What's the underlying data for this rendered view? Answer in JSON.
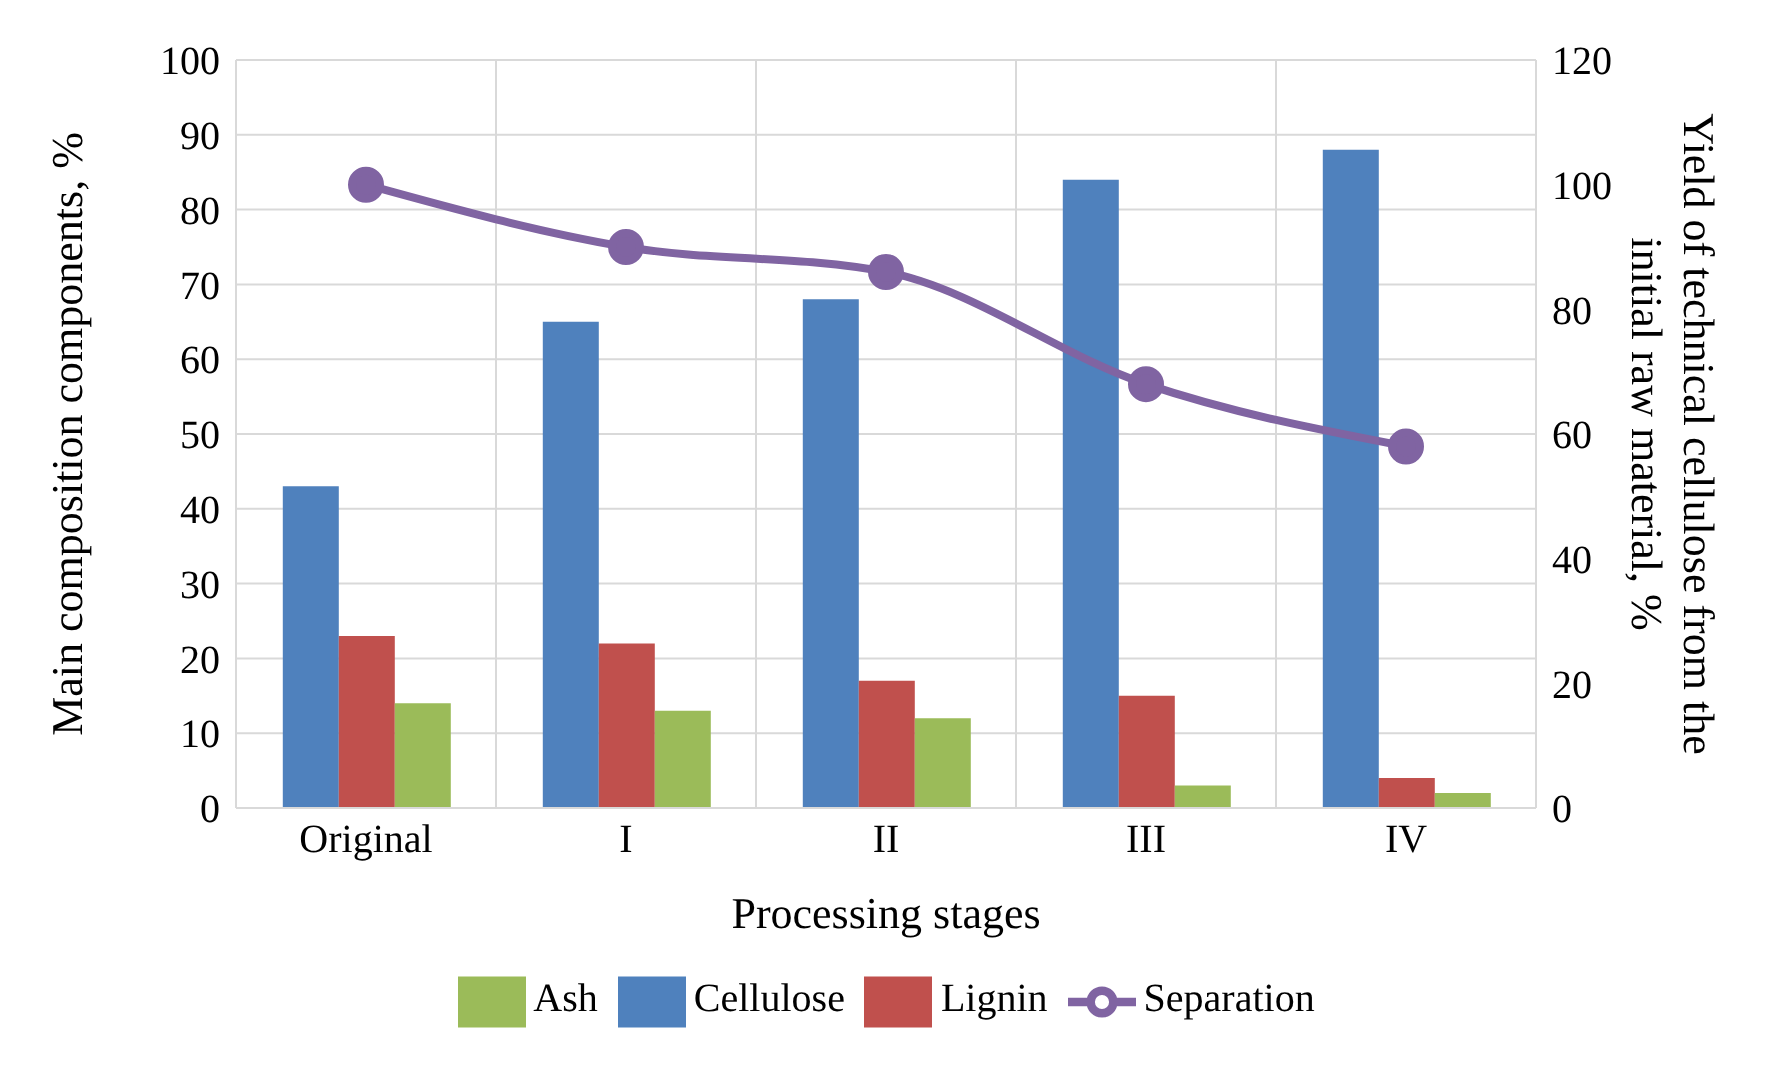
{
  "chart_data": {
    "type": "bar",
    "xlabel": "Processing stages",
    "ylabel": "Main composition components, %",
    "y2label": "Yield of technical cellulose from the initial raw material, %",
    "categories": [
      "Original",
      "I",
      "II",
      "III",
      "IV"
    ],
    "series": [
      {
        "name": "Cellulose",
        "color": "#4f81bd",
        "values": [
          43,
          65,
          68,
          84,
          88
        ]
      },
      {
        "name": "Lignin",
        "color": "#c0504d",
        "values": [
          23,
          22,
          17,
          15,
          4
        ]
      },
      {
        "name": "Ash",
        "color": "#9bbb59",
        "values": [
          14,
          13,
          12,
          3,
          2
        ]
      },
      {
        "name": "Separation",
        "color": "#8064a2",
        "type": "line",
        "axis": "y2",
        "values": [
          100,
          90,
          86,
          68,
          58
        ]
      }
    ],
    "ylim": [
      0,
      100
    ],
    "yticks": [
      0,
      10,
      20,
      30,
      40,
      50,
      60,
      70,
      80,
      90,
      100
    ],
    "y2lim": [
      0,
      120
    ],
    "y2ticks": [
      0,
      20,
      40,
      60,
      80,
      100,
      120
    ],
    "grid": true,
    "legend": "bottom",
    "marker": "circle"
  }
}
